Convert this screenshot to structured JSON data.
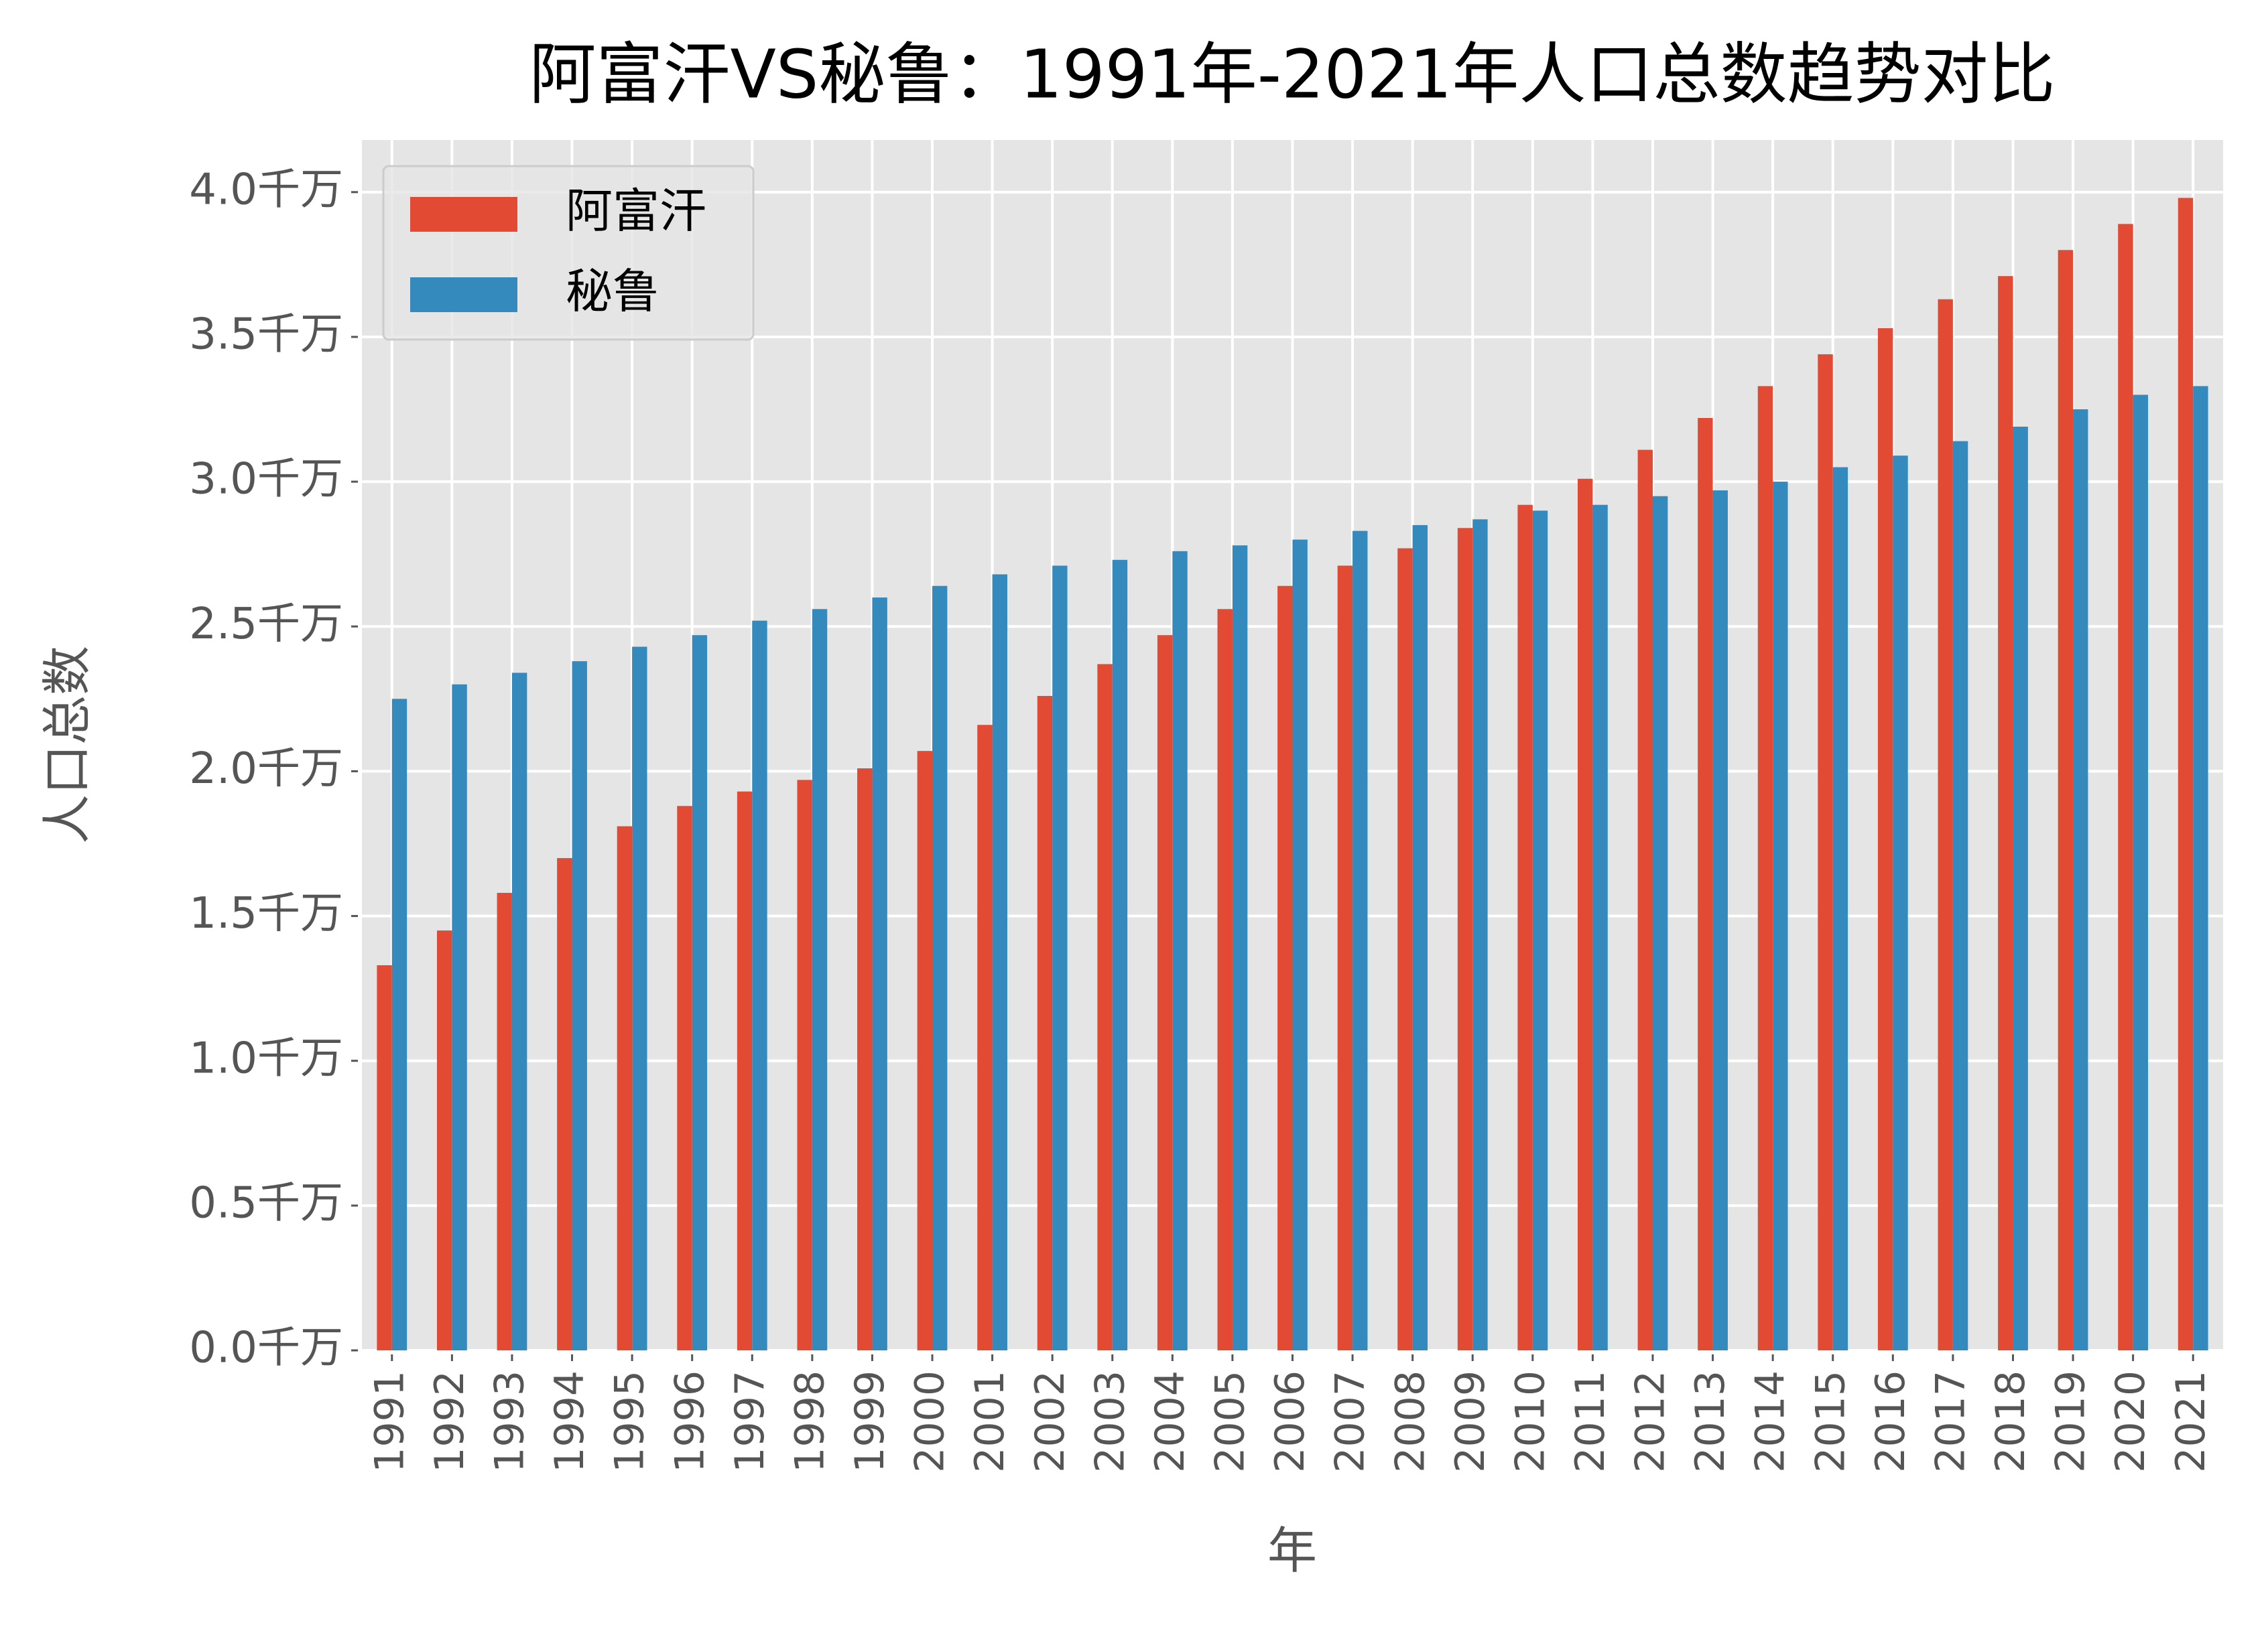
{
  "chart_data": {
    "type": "bar",
    "title": "阿富汗VS秘鲁：1991年-2021年人口总数趋势对比",
    "x_label": "年",
    "y_label": "人口总数",
    "categories": [
      "1991",
      "1992",
      "1993",
      "1994",
      "1995",
      "1996",
      "1997",
      "1998",
      "1999",
      "2000",
      "2001",
      "2002",
      "2003",
      "2004",
      "2005",
      "2006",
      "2007",
      "2008",
      "2009",
      "2010",
      "2011",
      "2012",
      "2013",
      "2014",
      "2015",
      "2016",
      "2017",
      "2018",
      "2019",
      "2020",
      "2021"
    ],
    "series": [
      {
        "name": "阿富汗",
        "color": "#E24A33",
        "values": [
          1.33,
          1.45,
          1.58,
          1.7,
          1.81,
          1.88,
          1.93,
          1.97,
          2.01,
          2.07,
          2.16,
          2.26,
          2.37,
          2.47,
          2.56,
          2.64,
          2.71,
          2.77,
          2.84,
          2.92,
          3.01,
          3.11,
          3.22,
          3.33,
          3.44,
          3.53,
          3.63,
          3.71,
          3.8,
          3.89,
          3.98
        ]
      },
      {
        "name": "秘鲁",
        "color": "#348ABD",
        "values": [
          2.25,
          2.3,
          2.34,
          2.38,
          2.43,
          2.47,
          2.52,
          2.56,
          2.6,
          2.64,
          2.68,
          2.71,
          2.73,
          2.76,
          2.78,
          2.8,
          2.83,
          2.85,
          2.87,
          2.9,
          2.92,
          2.95,
          2.97,
          3.0,
          3.05,
          3.09,
          3.14,
          3.19,
          3.25,
          3.3,
          3.33
        ]
      }
    ],
    "ylim": [
      0,
      4.18
    ],
    "yticks": [
      {
        "value": 0,
        "label": "0.0千万"
      },
      {
        "value": 0.5,
        "label": "0.5千万"
      },
      {
        "value": 1,
        "label": "1.0千万"
      },
      {
        "value": 1.5,
        "label": "1.5千万"
      },
      {
        "value": 2,
        "label": "2.0千万"
      },
      {
        "value": 2.5,
        "label": "2.5千万"
      },
      {
        "value": 3,
        "label": "3.0千万"
      },
      {
        "value": 3.5,
        "label": "3.5千万"
      },
      {
        "value": 4,
        "label": "4.0千万"
      }
    ],
    "grid": true,
    "legend": "upper-left"
  }
}
